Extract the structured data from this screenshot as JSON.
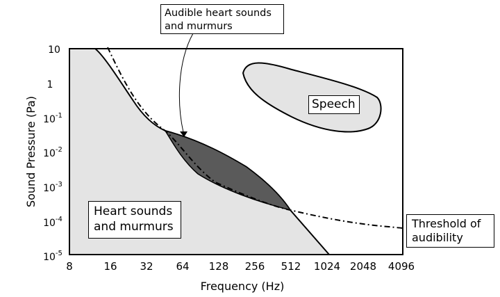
{
  "figure": {
    "x_axis": {
      "label": "Frequency (Hz)",
      "ticks": [
        "8",
        "16",
        "32",
        "64",
        "128",
        "256",
        "512",
        "1024",
        "2048",
        "4096"
      ],
      "scale": "log2",
      "range": [
        8,
        4096
      ]
    },
    "y_axis": {
      "label": "Sound Pressure (Pa)",
      "ticks": [
        {
          "base": "10",
          "exp": ""
        },
        {
          "base": "1",
          "exp": ""
        },
        {
          "base": "10",
          "exp": "-1"
        },
        {
          "base": "10",
          "exp": "-2"
        },
        {
          "base": "10",
          "exp": "-3"
        },
        {
          "base": "10",
          "exp": "-4"
        },
        {
          "base": "10",
          "exp": "-5"
        }
      ],
      "scale": "log10",
      "range": [
        1e-05,
        10
      ]
    },
    "callouts": {
      "audible": [
        "Audible heart sounds",
        "and murmurs"
      ],
      "heart": [
        "Heart sounds",
        "and murmurs"
      ],
      "threshold": [
        "Threshold of",
        "audibility"
      ],
      "speech": "Speech"
    },
    "colors": {
      "region_fill": "#e4e4e4",
      "audible_fill": "#5a5a5a",
      "line": "#000000"
    }
  }
}
